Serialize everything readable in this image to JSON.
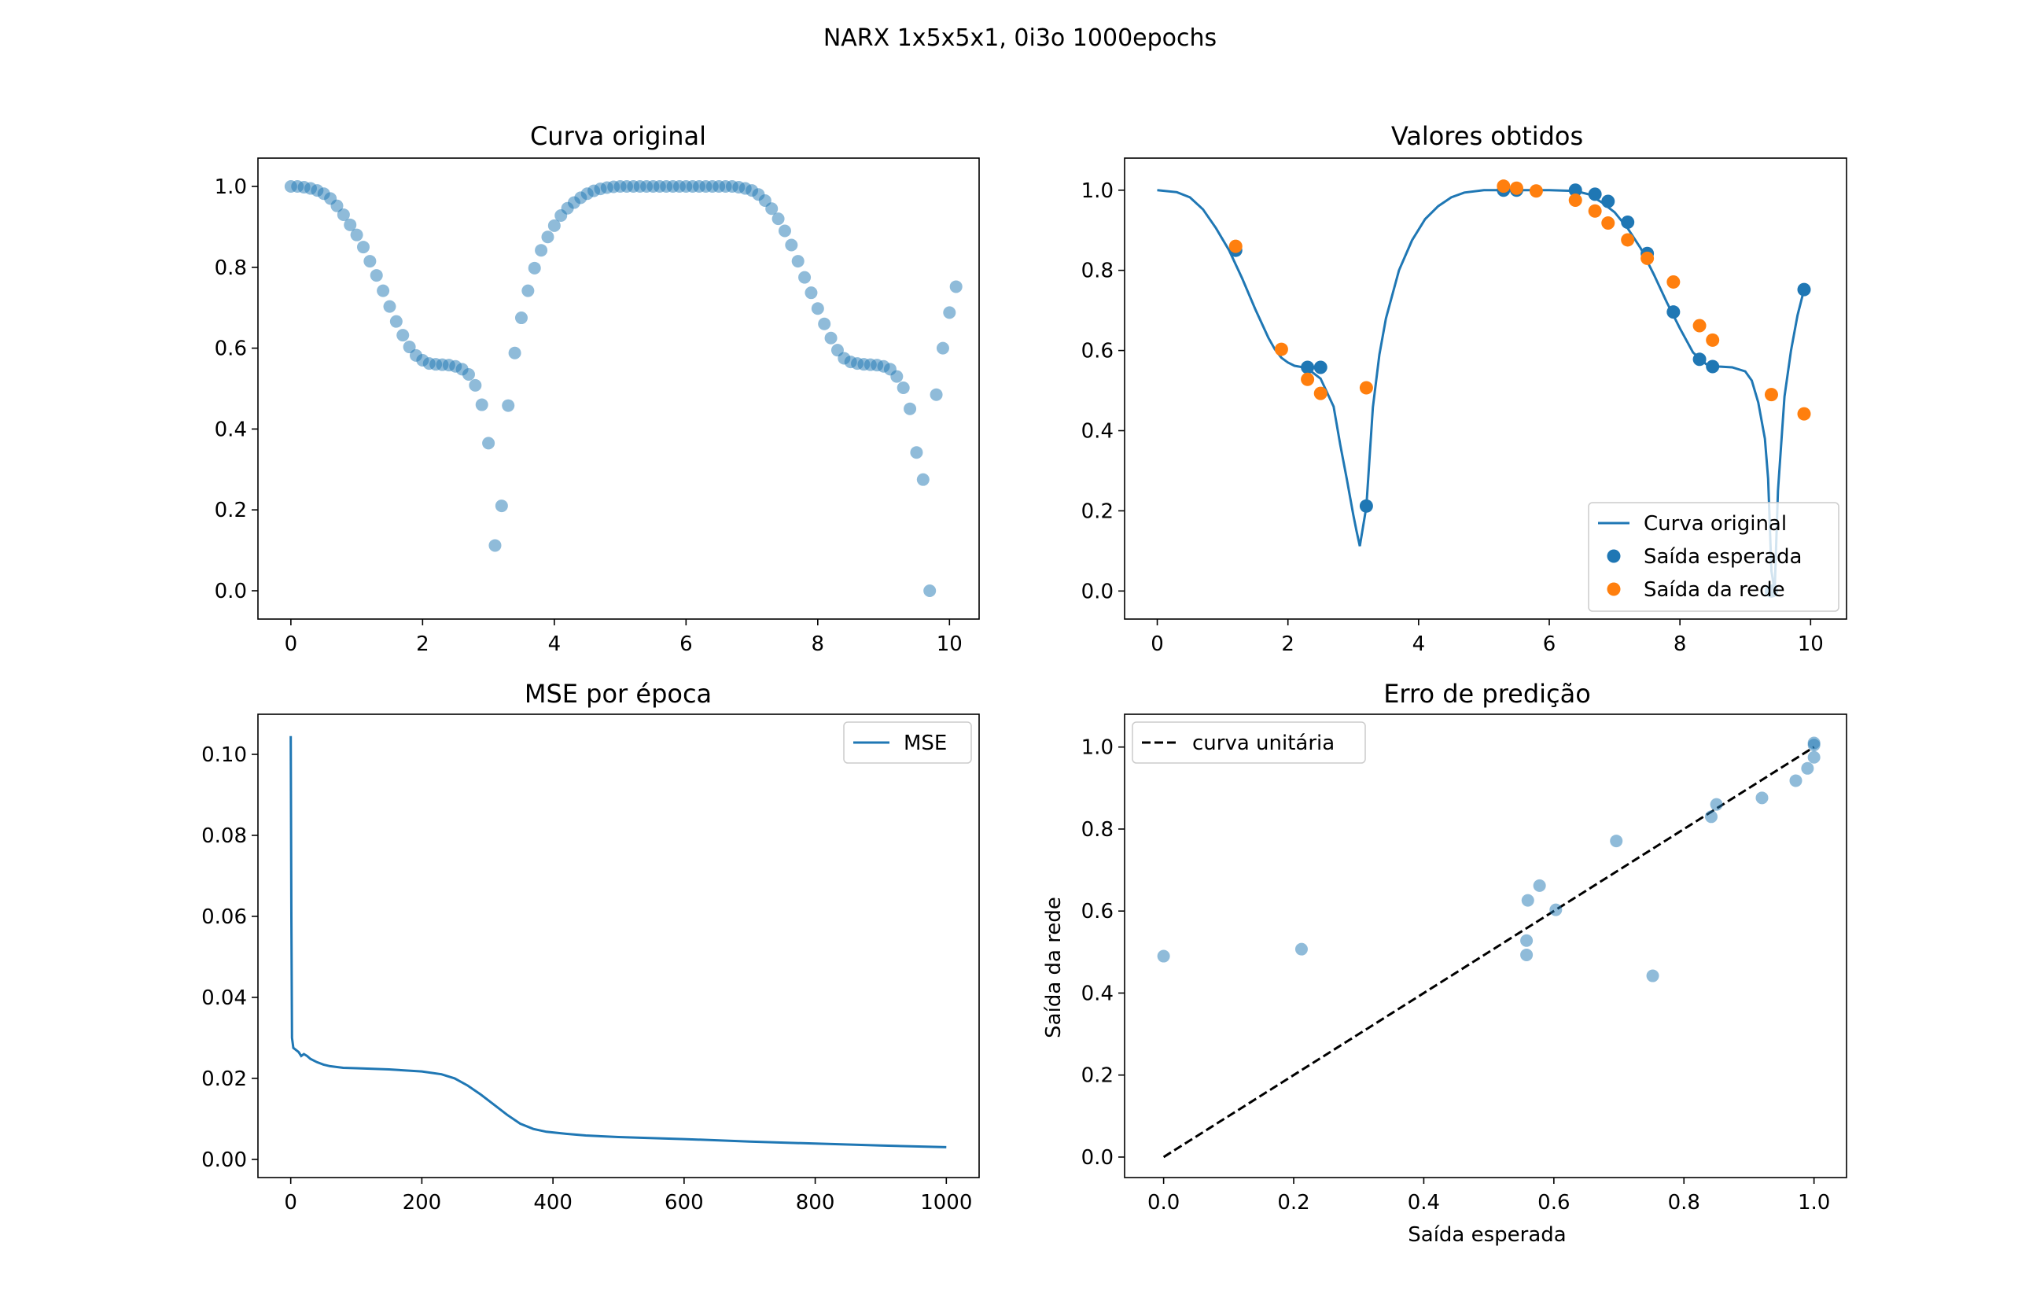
{
  "figure": {
    "suptitle": "NARX 1x5x5x1, 0i3o 1000epochs"
  },
  "colors": {
    "blue": "#1f77b4",
    "orange": "#ff7f0e",
    "black": "#000000",
    "legend_edge": "#cccccc"
  },
  "chart_data": [
    {
      "id": "p1",
      "type": "scatter",
      "title": "Curva original",
      "xlabel": "",
      "ylabel": "",
      "xlim": [
        -0.5,
        10.45
      ],
      "ylim": [
        -0.07,
        1.07
      ],
      "xticks": [
        0,
        2,
        4,
        6,
        8,
        10
      ],
      "yticks": [
        0.0,
        0.2,
        0.4,
        0.6,
        0.8,
        1.0
      ],
      "x_start": 0,
      "x_step": 0.1,
      "y": [
        1.0,
        1.0,
        0.998,
        0.995,
        0.99,
        0.982,
        0.97,
        0.952,
        0.93,
        0.905,
        0.88,
        0.85,
        0.815,
        0.78,
        0.742,
        0.703,
        0.666,
        0.632,
        0.603,
        0.582,
        0.57,
        0.562,
        0.56,
        0.559,
        0.558,
        0.555,
        0.548,
        0.535,
        0.508,
        0.46,
        0.365,
        0.112,
        0.21,
        0.458,
        0.588,
        0.675,
        0.742,
        0.798,
        0.842,
        0.875,
        0.903,
        0.928,
        0.946,
        0.96,
        0.972,
        0.982,
        0.989,
        0.994,
        0.997,
        0.999,
        1.0,
        1.0,
        1.0,
        1.0,
        1.0,
        1.0,
        1.0,
        1.0,
        1.0,
        1.0,
        1.0,
        1.0,
        1.0,
        1.0,
        1.0,
        1.0,
        1.0,
        1.0,
        0.998,
        0.995,
        0.99,
        0.98,
        0.965,
        0.945,
        0.92,
        0.89,
        0.855,
        0.815,
        0.775,
        0.737,
        0.698,
        0.66,
        0.625,
        0.595,
        0.575,
        0.566,
        0.562,
        0.56,
        0.559,
        0.558,
        0.555,
        0.548,
        0.53,
        0.502,
        0.45,
        0.342,
        0.275,
        0.0,
        0.485,
        0.6,
        0.688,
        0.752
      ],
      "alpha": 0.5
    },
    {
      "id": "p2",
      "type": "line+scatter",
      "title": "Valores obtidos",
      "xlabel": "",
      "ylabel": "",
      "xlim": [
        -0.5,
        10.55
      ],
      "ylim": [
        -0.07,
        1.08
      ],
      "xticks": [
        0,
        2,
        4,
        6,
        8,
        10
      ],
      "yticks": [
        0.0,
        0.2,
        0.4,
        0.6,
        0.8,
        1.0
      ],
      "series": [
        {
          "name": "Curva original",
          "style": "line",
          "color": "#1f77b4",
          "x": [
            0,
            0.3,
            0.5,
            0.7,
            0.9,
            1.1,
            1.3,
            1.5,
            1.7,
            1.8,
            1.9,
            2.0,
            2.1,
            2.2,
            2.3,
            2.5,
            2.7,
            2.8,
            2.9,
            3.0,
            3.05,
            3.1,
            3.2,
            3.3,
            3.4,
            3.5,
            3.7,
            3.9,
            4.1,
            4.3,
            4.5,
            4.7,
            5.0,
            5.5,
            6.0,
            6.4,
            6.6,
            6.8,
            7.0,
            7.2,
            7.4,
            7.6,
            7.8,
            8.0,
            8.2,
            8.4,
            8.6,
            8.8,
            9.0,
            9.1,
            9.2,
            9.3,
            9.35,
            9.4,
            9.45,
            9.5,
            9.6,
            9.7,
            9.8,
            9.9
          ],
          "y": [
            1.0,
            0.995,
            0.982,
            0.952,
            0.905,
            0.85,
            0.78,
            0.703,
            0.632,
            0.603,
            0.582,
            0.57,
            0.562,
            0.559,
            0.555,
            0.53,
            0.46,
            0.365,
            0.28,
            0.19,
            0.15,
            0.112,
            0.21,
            0.458,
            0.59,
            0.68,
            0.8,
            0.875,
            0.928,
            0.96,
            0.982,
            0.994,
            1.0,
            1.0,
            1.0,
            0.998,
            0.99,
            0.97,
            0.945,
            0.905,
            0.855,
            0.79,
            0.72,
            0.655,
            0.595,
            0.566,
            0.56,
            0.558,
            0.548,
            0.525,
            0.47,
            0.38,
            0.28,
            0.05,
            0.0,
            0.25,
            0.485,
            0.6,
            0.688,
            0.752
          ]
        },
        {
          "name": "Saída esperada",
          "style": "scatter",
          "color": "#1f77b4",
          "x": [
            1.2,
            2.3,
            2.5,
            3.2,
            5.3,
            5.5,
            6.4,
            6.7,
            6.9,
            7.2,
            7.5,
            7.9,
            8.3,
            8.5,
            9.4,
            9.9
          ],
          "y": [
            0.85,
            0.558,
            0.558,
            0.212,
            1.0,
            1.0,
            1.0,
            0.99,
            0.972,
            0.92,
            0.842,
            0.696,
            0.578,
            0.56,
            0.0,
            0.752
          ]
        },
        {
          "name": "Saída da rede",
          "style": "scatter",
          "color": "#ff7f0e",
          "x": [
            1.2,
            1.9,
            2.3,
            2.5,
            3.2,
            5.3,
            5.5,
            5.8,
            6.4,
            6.7,
            6.9,
            7.2,
            7.5,
            7.9,
            8.3,
            8.5,
            9.4,
            9.9
          ],
          "y": [
            0.86,
            0.603,
            0.528,
            0.493,
            0.507,
            1.01,
            1.005,
            0.998,
            0.975,
            0.948,
            0.918,
            0.876,
            0.83,
            0.771,
            0.662,
            0.626,
            0.49,
            0.442
          ]
        }
      ],
      "legend": {
        "placement": "lower right",
        "entries": [
          "Curva original",
          "Saída esperada",
          "Saída da rede"
        ]
      }
    },
    {
      "id": "p3",
      "type": "line",
      "title": "MSE por época",
      "xlabel": "",
      "ylabel": "",
      "xlim": [
        -50,
        1050
      ],
      "ylim": [
        -0.0045,
        0.1099
      ],
      "xticks": [
        0,
        200,
        400,
        600,
        800,
        1000
      ],
      "yticks": [
        0.0,
        0.02,
        0.04,
        0.06,
        0.08,
        0.1
      ],
      "ytick_labels": [
        "0.00",
        "0.02",
        "0.04",
        "0.06",
        "0.08",
        "0.10"
      ],
      "series": [
        {
          "name": "MSE",
          "color": "#1f77b4",
          "x": [
            0,
            1,
            2,
            4,
            8,
            12,
            16,
            20,
            25,
            30,
            40,
            50,
            60,
            80,
            100,
            150,
            200,
            230,
            250,
            270,
            290,
            310,
            330,
            350,
            370,
            390,
            420,
            450,
            500,
            600,
            700,
            800,
            900,
            1000
          ],
          "y": [
            0.1045,
            0.06,
            0.03,
            0.0275,
            0.027,
            0.0265,
            0.0255,
            0.026,
            0.0255,
            0.0248,
            0.024,
            0.0234,
            0.023,
            0.0226,
            0.0225,
            0.0222,
            0.0217,
            0.021,
            0.02,
            0.0182,
            0.016,
            0.0135,
            0.011,
            0.0088,
            0.0075,
            0.0068,
            0.0063,
            0.0059,
            0.0055,
            0.005,
            0.0044,
            0.0039,
            0.0034,
            0.003
          ]
        }
      ],
      "legend": {
        "placement": "upper right",
        "entries": [
          "MSE"
        ]
      }
    },
    {
      "id": "p4",
      "type": "scatter",
      "title": "Erro de predição",
      "xlabel": "Saída esperada",
      "ylabel": "Saída da rede",
      "xlim": [
        -0.06,
        1.05
      ],
      "ylim": [
        -0.05,
        1.08
      ],
      "xticks": [
        0.0,
        0.2,
        0.4,
        0.6,
        0.8,
        1.0
      ],
      "yticks": [
        0.0,
        0.2,
        0.4,
        0.6,
        0.8,
        1.0
      ],
      "alpha": 0.5,
      "points_x": [
        0.0,
        0.212,
        0.558,
        0.558,
        0.56,
        0.578,
        0.603,
        0.696,
        0.752,
        0.842,
        0.85,
        0.92,
        0.972,
        0.99,
        1.0,
        1.0,
        1.0
      ],
      "points_y": [
        0.49,
        0.507,
        0.493,
        0.528,
        0.626,
        0.662,
        0.603,
        0.771,
        0.442,
        0.83,
        0.86,
        0.876,
        0.918,
        0.948,
        0.975,
        1.005,
        1.01
      ],
      "reference_line": {
        "name": "curva unitária",
        "x": [
          0,
          1
        ],
        "y": [
          0,
          1
        ],
        "style": "dashed",
        "color": "#000000"
      },
      "legend": {
        "placement": "upper left",
        "entries": [
          "curva unitária"
        ]
      }
    }
  ]
}
